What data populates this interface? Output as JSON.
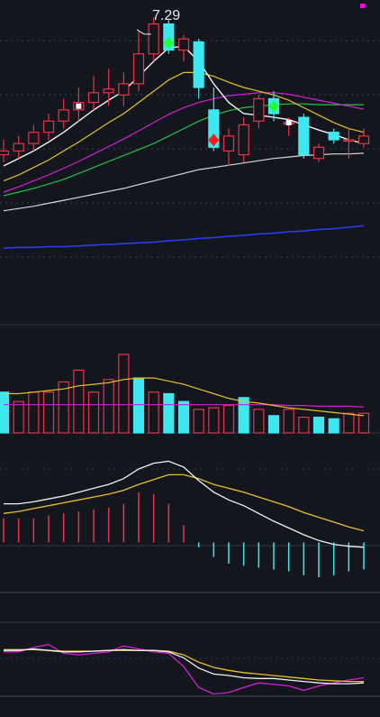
{
  "chart_data": [
    {
      "type": "candlestick",
      "panel": "price",
      "annotations": [
        {
          "text": "7.29",
          "at_index": 9
        }
      ],
      "ylim": [
        3.9,
        7.4
      ],
      "colors": {
        "up": "#e8334a",
        "down": "#3fe8f0",
        "ma_white": "#f2f2f2",
        "ma_yellow": "#e6c229",
        "ma_magenta": "#d21fd6",
        "ma_green": "#22c24a",
        "ma_long_white": "#d8d8d8",
        "ma_blue": "#2c3cf0"
      },
      "candles": [
        {
          "o": 5.45,
          "h": 5.65,
          "l": 5.35,
          "c": 5.5
        },
        {
          "o": 5.5,
          "h": 5.7,
          "l": 5.4,
          "c": 5.6
        },
        {
          "o": 5.6,
          "h": 5.85,
          "l": 5.5,
          "c": 5.75
        },
        {
          "o": 5.75,
          "h": 6.0,
          "l": 5.65,
          "c": 5.9
        },
        {
          "o": 5.9,
          "h": 6.2,
          "l": 5.8,
          "c": 6.05
        },
        {
          "o": 6.05,
          "h": 6.35,
          "l": 5.9,
          "c": 6.15
        },
        {
          "o": 6.15,
          "h": 6.5,
          "l": 6.05,
          "c": 6.28
        },
        {
          "o": 6.28,
          "h": 6.6,
          "l": 6.1,
          "c": 6.33
        },
        {
          "o": 6.25,
          "h": 6.55,
          "l": 6.1,
          "c": 6.4
        },
        {
          "o": 6.4,
          "h": 7.1,
          "l": 6.3,
          "c": 6.8
        },
        {
          "o": 6.8,
          "h": 7.29,
          "l": 6.7,
          "c": 7.2
        },
        {
          "o": 7.2,
          "h": 7.25,
          "l": 6.8,
          "c": 6.85
        },
        {
          "o": 6.85,
          "h": 7.05,
          "l": 6.7,
          "c": 7.0
        },
        {
          "o": 6.96,
          "h": 7.0,
          "l": 6.2,
          "c": 6.35
        },
        {
          "o": 6.05,
          "h": 6.35,
          "l": 5.5,
          "c": 5.55
        },
        {
          "o": 5.5,
          "h": 5.8,
          "l": 5.3,
          "c": 5.7
        },
        {
          "o": 5.45,
          "h": 5.95,
          "l": 5.35,
          "c": 5.85
        },
        {
          "o": 5.9,
          "h": 6.25,
          "l": 5.8,
          "c": 6.2
        },
        {
          "o": 6.2,
          "h": 6.3,
          "l": 5.9,
          "c": 6.0
        },
        {
          "o": 5.88,
          "h": 5.95,
          "l": 5.7,
          "c": 5.88
        },
        {
          "o": 5.95,
          "h": 6.0,
          "l": 5.4,
          "c": 5.45
        },
        {
          "o": 5.4,
          "h": 5.6,
          "l": 5.35,
          "c": 5.55
        },
        {
          "o": 5.75,
          "h": 5.8,
          "l": 5.6,
          "c": 5.65
        },
        {
          "o": 5.65,
          "h": 5.8,
          "l": 5.4,
          "c": 5.65
        },
        {
          "o": 5.6,
          "h": 5.8,
          "l": 5.55,
          "c": 5.7
        }
      ],
      "ma_lines": {
        "white": [
          5.3,
          5.4,
          5.5,
          5.62,
          5.75,
          5.9,
          6.05,
          6.18,
          6.3,
          6.5,
          6.7,
          6.88,
          6.9,
          6.7,
          6.4,
          6.15,
          6.0,
          5.98,
          5.95,
          5.92,
          5.85,
          5.78,
          5.72,
          5.65,
          5.6
        ],
        "yellow": [
          5.1,
          5.18,
          5.28,
          5.38,
          5.5,
          5.62,
          5.75,
          5.88,
          6.0,
          6.15,
          6.3,
          6.45,
          6.55,
          6.55,
          6.5,
          6.42,
          6.35,
          6.3,
          6.25,
          6.18,
          6.08,
          5.98,
          5.88,
          5.8,
          5.75
        ],
        "magenta": [
          4.95,
          5.02,
          5.1,
          5.18,
          5.27,
          5.36,
          5.46,
          5.56,
          5.66,
          5.77,
          5.88,
          5.99,
          6.08,
          6.15,
          6.2,
          6.24,
          6.26,
          6.28,
          6.28,
          6.26,
          6.22,
          6.18,
          6.14,
          6.1,
          6.06
        ],
        "green": [
          4.9,
          4.95,
          5.0,
          5.06,
          5.12,
          5.2,
          5.28,
          5.36,
          5.44,
          5.52,
          5.6,
          5.7,
          5.8,
          5.9,
          5.98,
          6.04,
          6.08,
          6.1,
          6.12,
          6.13,
          6.13,
          6.12,
          6.12,
          6.12,
          6.12
        ],
        "long_white": [
          4.7,
          4.73,
          4.76,
          4.8,
          4.84,
          4.88,
          4.92,
          4.96,
          5.0,
          5.05,
          5.1,
          5.15,
          5.2,
          5.25,
          5.28,
          5.31,
          5.34,
          5.37,
          5.4,
          5.42,
          5.44,
          5.45,
          5.46,
          5.46,
          5.47
        ],
        "blue": [
          4.2,
          4.21,
          4.21,
          4.22,
          4.22,
          4.23,
          4.24,
          4.25,
          4.26,
          4.27,
          4.28,
          4.3,
          4.31,
          4.33,
          4.34,
          4.36,
          4.37,
          4.39,
          4.4,
          4.42,
          4.43,
          4.45,
          4.46,
          4.48,
          4.5
        ]
      },
      "markers": [
        {
          "index": 11,
          "shape": "diamond",
          "color": "#23ff3e"
        },
        {
          "index": 14,
          "shape": "diamond",
          "color": "#ff1a1a"
        },
        {
          "index": 18,
          "shape": "diamond",
          "color": "#23ff3e"
        },
        {
          "index": 5,
          "shape": "square",
          "color": "#ffffff"
        },
        {
          "index": 19,
          "shape": "square",
          "color": "#ffffff"
        }
      ]
    },
    {
      "type": "bar",
      "panel": "volume",
      "ylim": [
        0,
        100
      ],
      "values": [
        52,
        40,
        52,
        52,
        65,
        80,
        52,
        68,
        100,
        70,
        52,
        50,
        40,
        30,
        32,
        35,
        45,
        30,
        22,
        30,
        20,
        20,
        18,
        25,
        25
      ],
      "up_down": [
        "d",
        "u",
        "u",
        "u",
        "u",
        "u",
        "u",
        "u",
        "u",
        "d",
        "u",
        "d",
        "d",
        "u",
        "u",
        "u",
        "d",
        "u",
        "d",
        "u",
        "u",
        "d",
        "d",
        "u",
        "u"
      ],
      "ma1": [
        50,
        50,
        52,
        54,
        56,
        60,
        62,
        64,
        68,
        70,
        70,
        66,
        62,
        56,
        50,
        44,
        40,
        38,
        35,
        32,
        30,
        28,
        26,
        24,
        22
      ],
      "ma2": [
        36,
        36,
        36,
        36,
        36,
        36,
        36,
        36,
        36,
        36,
        36,
        36,
        36,
        36,
        36,
        36,
        36,
        36,
        36,
        35,
        35,
        34,
        34,
        34,
        33
      ]
    },
    {
      "type": "macd",
      "panel": "macd",
      "ylim": [
        -0.5,
        0.9
      ],
      "dif": [
        0.4,
        0.4,
        0.42,
        0.45,
        0.48,
        0.52,
        0.56,
        0.6,
        0.66,
        0.76,
        0.82,
        0.84,
        0.78,
        0.64,
        0.52,
        0.44,
        0.38,
        0.3,
        0.22,
        0.15,
        0.08,
        0.02,
        -0.02,
        -0.04,
        -0.05
      ],
      "dea": [
        0.3,
        0.32,
        0.35,
        0.38,
        0.41,
        0.44,
        0.47,
        0.5,
        0.54,
        0.6,
        0.65,
        0.7,
        0.7,
        0.66,
        0.6,
        0.56,
        0.52,
        0.47,
        0.42,
        0.37,
        0.31,
        0.26,
        0.21,
        0.16,
        0.12
      ],
      "histogram": [
        0.25,
        0.25,
        0.25,
        0.28,
        0.3,
        0.32,
        0.34,
        0.36,
        0.4,
        0.52,
        0.5,
        0.4,
        0.18,
        -0.05,
        -0.15,
        -0.22,
        -0.24,
        -0.26,
        -0.28,
        -0.3,
        -0.34,
        -0.36,
        -0.34,
        -0.3,
        -0.28
      ]
    },
    {
      "type": "line",
      "panel": "kdj",
      "ylim": [
        0,
        100
      ],
      "k": [
        62,
        62,
        64,
        62,
        60,
        60,
        61,
        62,
        63,
        62,
        62,
        60,
        52,
        38,
        30,
        28,
        25,
        24,
        24,
        22,
        20,
        18,
        17,
        17,
        18
      ],
      "d": [
        63,
        63,
        63,
        62,
        61,
        61,
        61,
        62,
        62,
        62,
        62,
        61,
        56,
        46,
        39,
        35,
        32,
        30,
        28,
        26,
        24,
        22,
        21,
        20,
        20
      ],
      "j": [
        60,
        60,
        66,
        70,
        58,
        56,
        58,
        60,
        68,
        64,
        60,
        58,
        40,
        12,
        3,
        5,
        12,
        18,
        16,
        14,
        8,
        14,
        18,
        22,
        25
      ]
    }
  ]
}
